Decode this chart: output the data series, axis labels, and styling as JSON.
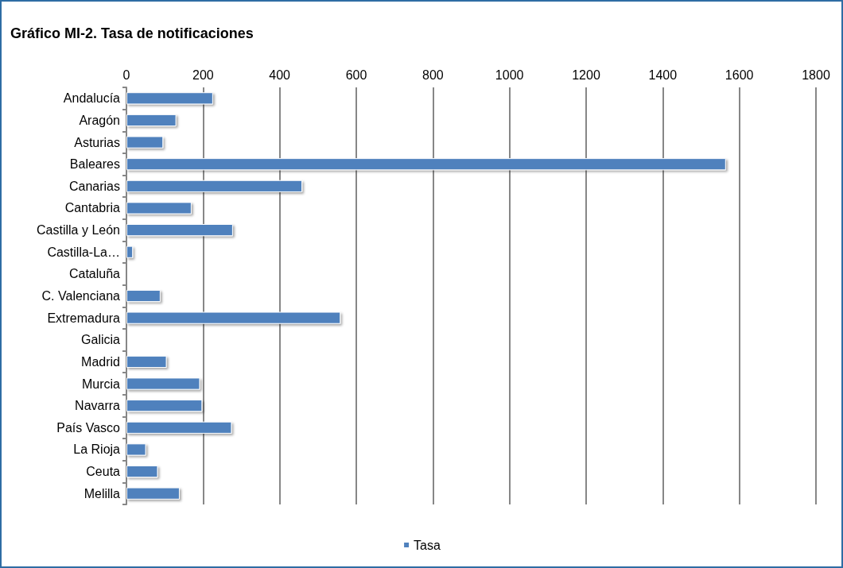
{
  "chart_data": {
    "type": "bar",
    "orientation": "horizontal",
    "title": "Gráfico MI-2. Tasa de notificaciones",
    "categories": [
      "Andalucía",
      "Aragón",
      "Asturias",
      "Baleares",
      "Canarias",
      "Cantabria",
      "Castilla y León",
      "Castilla-La…",
      "Cataluña",
      "C. Valenciana",
      "Extremadura",
      "Galicia",
      "Madrid",
      "Murcia",
      "Navarra",
      "País Vasco",
      "La Rioja",
      "Ceuta",
      "Melilla"
    ],
    "series": [
      {
        "name": "Tasa",
        "color": "#4f81bd",
        "values": [
          226,
          130,
          96,
          1565,
          459,
          170,
          278,
          17,
          null,
          89,
          559,
          null,
          105,
          192,
          198,
          275,
          51,
          82,
          139
        ]
      }
    ],
    "xlim": [
      0,
      1800
    ],
    "xticks": [
      0,
      200,
      400,
      600,
      800,
      1000,
      1200,
      1400,
      1600,
      1800
    ],
    "grid": "x",
    "legend": "bottom"
  }
}
